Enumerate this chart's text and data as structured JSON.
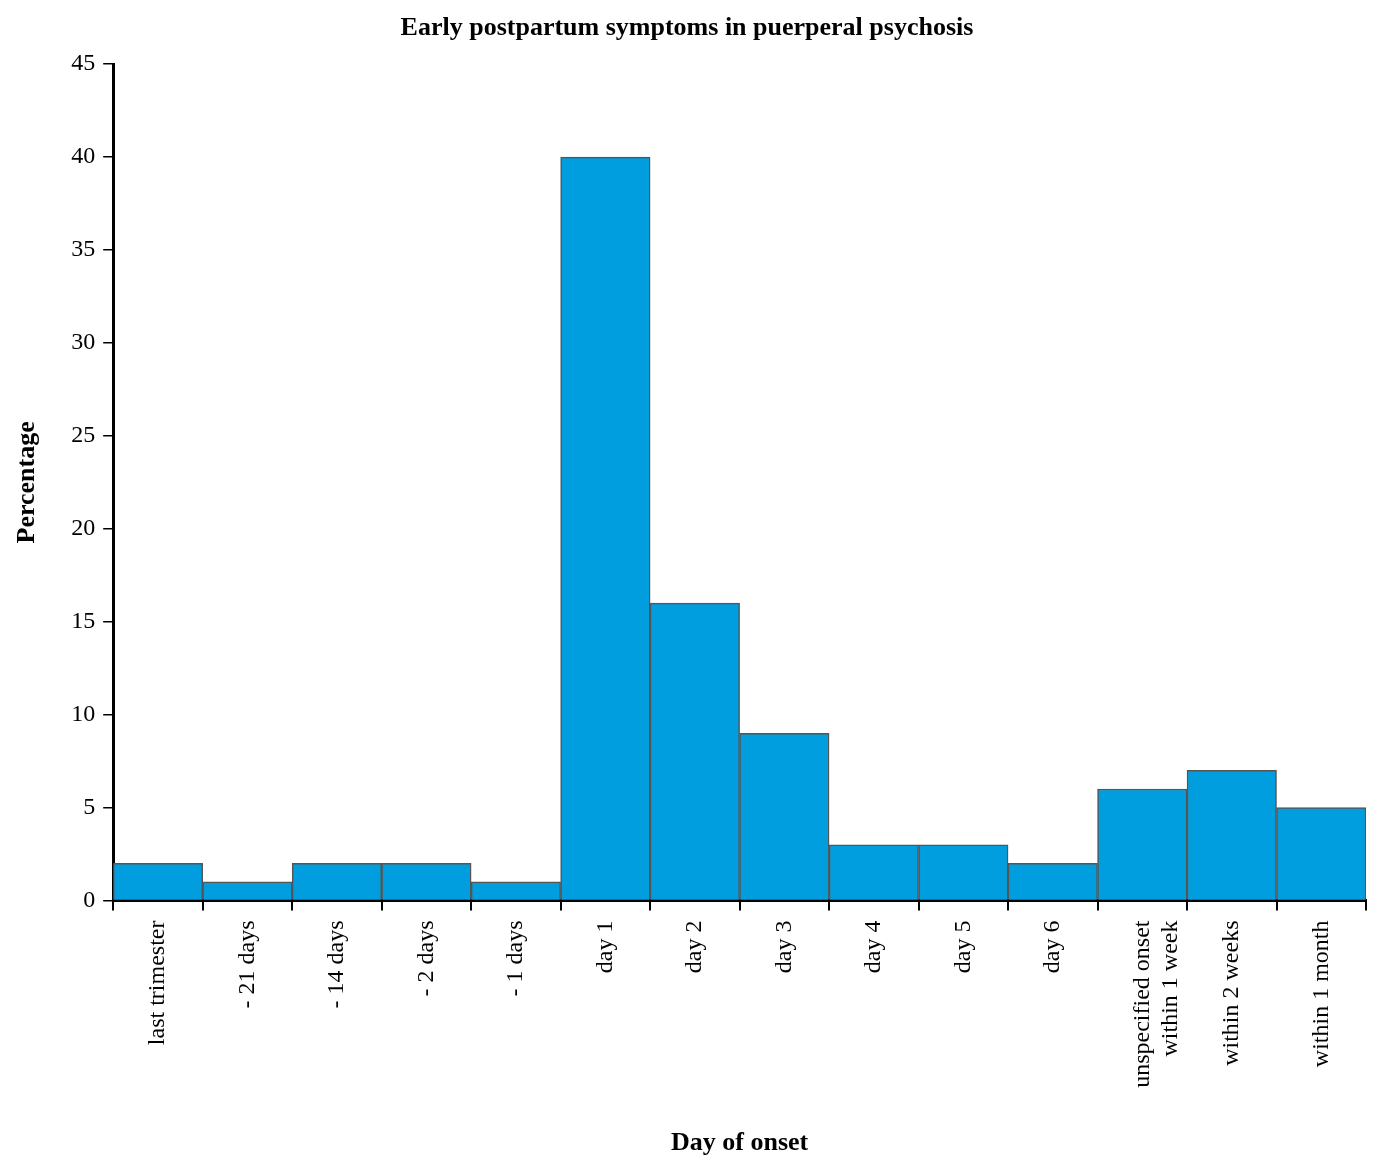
{
  "chart_data": {
    "type": "bar",
    "title": "Early postpartum symptoms in puerperal psychosis",
    "xlabel": "Day of onset",
    "ylabel": "Percentage",
    "categories": [
      "last trimester",
      "- 21 days",
      "- 14 days",
      "- 2 days",
      "- 1 days",
      "day 1",
      "day 2",
      "day 3",
      "day 4",
      "day 5",
      "day 6",
      "unspecified onset\nwithin 1 week",
      "within 2 weeks",
      "within 1 month"
    ],
    "values": [
      2,
      1,
      2,
      2,
      1,
      40,
      16,
      9,
      3,
      3,
      2,
      6,
      7,
      5
    ],
    "color": "#009ede",
    "ylim": [
      0,
      45
    ],
    "yticks": [
      0,
      5,
      10,
      15,
      20,
      25,
      30,
      35,
      40,
      45
    ],
    "grid": false,
    "legend": false
  }
}
